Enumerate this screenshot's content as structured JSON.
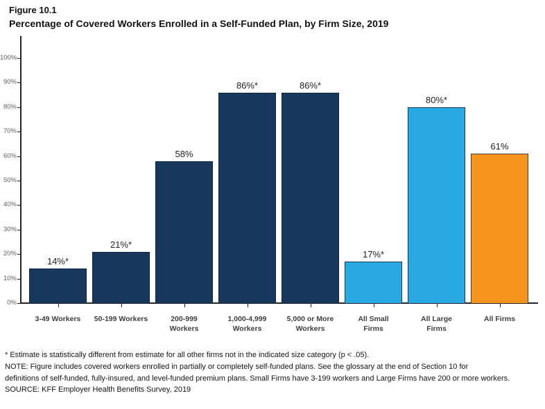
{
  "figure": {
    "label": "Figure 10.1",
    "title": "Percentage of Covered Workers Enrolled in a Self-Funded Plan, by Firm Size, 2019"
  },
  "chart_data": {
    "type": "bar",
    "title": "Percentage of Covered Workers Enrolled in a Self-Funded Plan, by Firm Size, 2019",
    "categories": [
      "3-49 Workers",
      "50-199 Workers",
      "200-999 Workers",
      "1,000-4,999 Workers",
      "5,000 or More Workers",
      "All Small Firms",
      "All Large Firms",
      "All Firms"
    ],
    "category_display_lines": [
      [
        "3-49 Workers"
      ],
      [
        "50-199 Workers"
      ],
      [
        "200-999",
        "Workers"
      ],
      [
        "1,000-4,999",
        "Workers"
      ],
      [
        "5,000 or More",
        "Workers"
      ],
      [
        "All Small",
        "Firms"
      ],
      [
        "All Large",
        "Firms"
      ],
      [
        "All Firms"
      ]
    ],
    "values": [
      14,
      21,
      58,
      86,
      86,
      17,
      80,
      61
    ],
    "value_labels": [
      "14%*",
      "21%*",
      "58%",
      "86%*",
      "86%*",
      "17%*",
      "80%*",
      "61%"
    ],
    "bar_colors": [
      "#17375C",
      "#17375C",
      "#17375C",
      "#17375C",
      "#17375C",
      "#29A9E1",
      "#29A9E1",
      "#F7941D"
    ],
    "bar_border_colors": [
      "#10253F",
      "#10253F",
      "#10253F",
      "#10253F",
      "#10253F",
      "#17375C",
      "#17375C",
      "#3F3F3F"
    ],
    "xlabel": "",
    "ylabel": "",
    "ylim": [
      0,
      100
    ],
    "y_tick_labels": [
      "0%",
      "10%",
      "20%",
      "30%",
      "40%",
      "50%",
      "60%",
      "70%",
      "80%",
      "90%",
      "100%"
    ],
    "grid": false,
    "legend": "none"
  },
  "footnotes": {
    "lines": [
      "* Estimate is statistically different from estimate for all other firms not in the indicated size category (p < .05).",
      "NOTE: Figure includes covered workers enrolled in partially or completely self-funded plans. See the glossary at the end of Section 10 for",
      "definitions of self-funded, fully-insured, and level-funded premium plans. Small Firms have 3-199 workers and Large Firms have 200 or more workers.",
      "SOURCE: KFF Employer Health Benefits Survey, 2019"
    ]
  },
  "colors": {
    "navy": "#17375C",
    "light_blue": "#29A9E1",
    "orange": "#F7941D",
    "axis": "#262626"
  }
}
